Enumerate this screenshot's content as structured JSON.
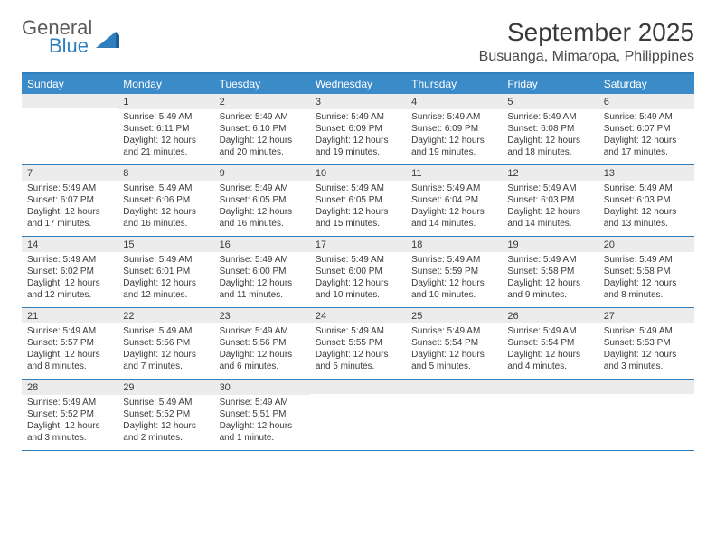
{
  "logo": {
    "word1": "General",
    "word2": "Blue"
  },
  "title": "September 2025",
  "location": "Busuanga, Mimaropa, Philippines",
  "colors": {
    "header_bg": "#3b8bc8",
    "border": "#2f7fbf",
    "daynum_bg": "#ececec",
    "text": "#3a3a3a"
  },
  "day_names": [
    "Sunday",
    "Monday",
    "Tuesday",
    "Wednesday",
    "Thursday",
    "Friday",
    "Saturday"
  ],
  "weeks": [
    [
      {
        "n": "",
        "sr": "",
        "ss": "",
        "dl": ""
      },
      {
        "n": "1",
        "sr": "Sunrise: 5:49 AM",
        "ss": "Sunset: 6:11 PM",
        "dl": "Daylight: 12 hours and 21 minutes."
      },
      {
        "n": "2",
        "sr": "Sunrise: 5:49 AM",
        "ss": "Sunset: 6:10 PM",
        "dl": "Daylight: 12 hours and 20 minutes."
      },
      {
        "n": "3",
        "sr": "Sunrise: 5:49 AM",
        "ss": "Sunset: 6:09 PM",
        "dl": "Daylight: 12 hours and 19 minutes."
      },
      {
        "n": "4",
        "sr": "Sunrise: 5:49 AM",
        "ss": "Sunset: 6:09 PM",
        "dl": "Daylight: 12 hours and 19 minutes."
      },
      {
        "n": "5",
        "sr": "Sunrise: 5:49 AM",
        "ss": "Sunset: 6:08 PM",
        "dl": "Daylight: 12 hours and 18 minutes."
      },
      {
        "n": "6",
        "sr": "Sunrise: 5:49 AM",
        "ss": "Sunset: 6:07 PM",
        "dl": "Daylight: 12 hours and 17 minutes."
      }
    ],
    [
      {
        "n": "7",
        "sr": "Sunrise: 5:49 AM",
        "ss": "Sunset: 6:07 PM",
        "dl": "Daylight: 12 hours and 17 minutes."
      },
      {
        "n": "8",
        "sr": "Sunrise: 5:49 AM",
        "ss": "Sunset: 6:06 PM",
        "dl": "Daylight: 12 hours and 16 minutes."
      },
      {
        "n": "9",
        "sr": "Sunrise: 5:49 AM",
        "ss": "Sunset: 6:05 PM",
        "dl": "Daylight: 12 hours and 16 minutes."
      },
      {
        "n": "10",
        "sr": "Sunrise: 5:49 AM",
        "ss": "Sunset: 6:05 PM",
        "dl": "Daylight: 12 hours and 15 minutes."
      },
      {
        "n": "11",
        "sr": "Sunrise: 5:49 AM",
        "ss": "Sunset: 6:04 PM",
        "dl": "Daylight: 12 hours and 14 minutes."
      },
      {
        "n": "12",
        "sr": "Sunrise: 5:49 AM",
        "ss": "Sunset: 6:03 PM",
        "dl": "Daylight: 12 hours and 14 minutes."
      },
      {
        "n": "13",
        "sr": "Sunrise: 5:49 AM",
        "ss": "Sunset: 6:03 PM",
        "dl": "Daylight: 12 hours and 13 minutes."
      }
    ],
    [
      {
        "n": "14",
        "sr": "Sunrise: 5:49 AM",
        "ss": "Sunset: 6:02 PM",
        "dl": "Daylight: 12 hours and 12 minutes."
      },
      {
        "n": "15",
        "sr": "Sunrise: 5:49 AM",
        "ss": "Sunset: 6:01 PM",
        "dl": "Daylight: 12 hours and 12 minutes."
      },
      {
        "n": "16",
        "sr": "Sunrise: 5:49 AM",
        "ss": "Sunset: 6:00 PM",
        "dl": "Daylight: 12 hours and 11 minutes."
      },
      {
        "n": "17",
        "sr": "Sunrise: 5:49 AM",
        "ss": "Sunset: 6:00 PM",
        "dl": "Daylight: 12 hours and 10 minutes."
      },
      {
        "n": "18",
        "sr": "Sunrise: 5:49 AM",
        "ss": "Sunset: 5:59 PM",
        "dl": "Daylight: 12 hours and 10 minutes."
      },
      {
        "n": "19",
        "sr": "Sunrise: 5:49 AM",
        "ss": "Sunset: 5:58 PM",
        "dl": "Daylight: 12 hours and 9 minutes."
      },
      {
        "n": "20",
        "sr": "Sunrise: 5:49 AM",
        "ss": "Sunset: 5:58 PM",
        "dl": "Daylight: 12 hours and 8 minutes."
      }
    ],
    [
      {
        "n": "21",
        "sr": "Sunrise: 5:49 AM",
        "ss": "Sunset: 5:57 PM",
        "dl": "Daylight: 12 hours and 8 minutes."
      },
      {
        "n": "22",
        "sr": "Sunrise: 5:49 AM",
        "ss": "Sunset: 5:56 PM",
        "dl": "Daylight: 12 hours and 7 minutes."
      },
      {
        "n": "23",
        "sr": "Sunrise: 5:49 AM",
        "ss": "Sunset: 5:56 PM",
        "dl": "Daylight: 12 hours and 6 minutes."
      },
      {
        "n": "24",
        "sr": "Sunrise: 5:49 AM",
        "ss": "Sunset: 5:55 PM",
        "dl": "Daylight: 12 hours and 5 minutes."
      },
      {
        "n": "25",
        "sr": "Sunrise: 5:49 AM",
        "ss": "Sunset: 5:54 PM",
        "dl": "Daylight: 12 hours and 5 minutes."
      },
      {
        "n": "26",
        "sr": "Sunrise: 5:49 AM",
        "ss": "Sunset: 5:54 PM",
        "dl": "Daylight: 12 hours and 4 minutes."
      },
      {
        "n": "27",
        "sr": "Sunrise: 5:49 AM",
        "ss": "Sunset: 5:53 PM",
        "dl": "Daylight: 12 hours and 3 minutes."
      }
    ],
    [
      {
        "n": "28",
        "sr": "Sunrise: 5:49 AM",
        "ss": "Sunset: 5:52 PM",
        "dl": "Daylight: 12 hours and 3 minutes."
      },
      {
        "n": "29",
        "sr": "Sunrise: 5:49 AM",
        "ss": "Sunset: 5:52 PM",
        "dl": "Daylight: 12 hours and 2 minutes."
      },
      {
        "n": "30",
        "sr": "Sunrise: 5:49 AM",
        "ss": "Sunset: 5:51 PM",
        "dl": "Daylight: 12 hours and 1 minute."
      },
      {
        "n": "",
        "sr": "",
        "ss": "",
        "dl": ""
      },
      {
        "n": "",
        "sr": "",
        "ss": "",
        "dl": ""
      },
      {
        "n": "",
        "sr": "",
        "ss": "",
        "dl": ""
      },
      {
        "n": "",
        "sr": "",
        "ss": "",
        "dl": ""
      }
    ]
  ]
}
